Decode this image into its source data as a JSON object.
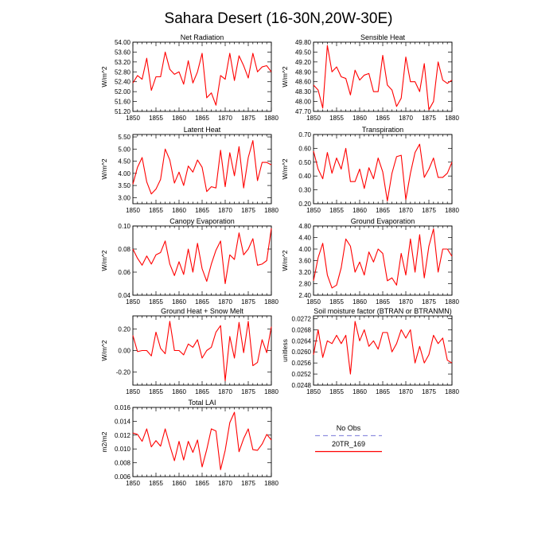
{
  "figure": {
    "title": "Sahara Desert (16-30N,20W-30E)"
  },
  "legend": {
    "entries": [
      {
        "label": "No Obs",
        "color": "#8f8fe0",
        "dashed": true
      },
      {
        "label": "20TR_169",
        "color": "#ff0000",
        "dashed": false
      }
    ]
  },
  "chart_data": [
    {
      "type": "line",
      "title": "Net Radiation",
      "xlabel": "",
      "ylabel": "W/m^2",
      "x": [
        1850,
        1851,
        1852,
        1853,
        1854,
        1855,
        1856,
        1857,
        1858,
        1859,
        1860,
        1861,
        1862,
        1863,
        1864,
        1865,
        1866,
        1867,
        1868,
        1869,
        1870,
        1871,
        1872,
        1873,
        1874,
        1875,
        1876,
        1877,
        1878,
        1879,
        1880
      ],
      "series": [
        {
          "values": [
            52.35,
            52.65,
            52.5,
            53.35,
            52.05,
            52.6,
            52.6,
            53.6,
            52.9,
            52.7,
            52.8,
            52.3,
            53.25,
            52.35,
            52.8,
            53.55,
            51.75,
            51.95,
            51.45,
            52.65,
            52.5,
            53.55,
            52.45,
            53.45,
            53.05,
            52.55,
            53.55,
            52.8,
            53.0,
            53.05,
            52.8
          ],
          "color": "#ff0000"
        }
      ],
      "xlim": [
        1850,
        1880
      ],
      "ylim": [
        51.2,
        54.0
      ],
      "xticks": [
        1850,
        1855,
        1860,
        1865,
        1870,
        1875,
        1880
      ],
      "yticks": [
        51.2,
        51.6,
        52.0,
        52.4,
        52.8,
        53.2,
        53.6,
        54.0
      ],
      "ytick_labels": [
        "51.20",
        "51.60",
        "52.00",
        "52.40",
        "52.80",
        "53.20",
        "53.60",
        "54.00"
      ],
      "legend": "none",
      "grid": false
    },
    {
      "type": "line",
      "title": "Sensible Heat",
      "xlabel": "",
      "ylabel": "W/m^2",
      "x": [
        1850,
        1851,
        1852,
        1853,
        1854,
        1855,
        1856,
        1857,
        1858,
        1859,
        1860,
        1861,
        1862,
        1863,
        1864,
        1865,
        1866,
        1867,
        1868,
        1869,
        1870,
        1871,
        1872,
        1873,
        1874,
        1875,
        1876,
        1877,
        1878,
        1879,
        1880
      ],
      "series": [
        {
          "values": [
            48.5,
            48.35,
            47.8,
            49.7,
            48.9,
            49.05,
            48.75,
            48.7,
            48.2,
            48.95,
            48.65,
            48.8,
            48.85,
            48.3,
            48.3,
            49.4,
            48.5,
            48.35,
            47.85,
            48.1,
            49.35,
            48.6,
            48.6,
            48.3,
            49.15,
            47.75,
            48.0,
            49.2,
            48.65,
            48.55,
            48.65
          ],
          "color": "#ff0000"
        }
      ],
      "xlim": [
        1850,
        1880
      ],
      "ylim": [
        47.7,
        49.8
      ],
      "xticks": [
        1850,
        1855,
        1860,
        1865,
        1870,
        1875,
        1880
      ],
      "yticks": [
        47.7,
        48.0,
        48.3,
        48.6,
        48.9,
        49.2,
        49.5,
        49.8
      ],
      "ytick_labels": [
        "47.70",
        "48.00",
        "48.30",
        "48.60",
        "48.90",
        "49.20",
        "49.50",
        "49.80"
      ],
      "legend": "none",
      "grid": false
    },
    {
      "type": "line",
      "title": "Latent Heat",
      "xlabel": "",
      "ylabel": "W/m^2",
      "x": [
        1850,
        1851,
        1852,
        1853,
        1854,
        1855,
        1856,
        1857,
        1858,
        1859,
        1860,
        1861,
        1862,
        1863,
        1864,
        1865,
        1866,
        1867,
        1868,
        1869,
        1870,
        1871,
        1872,
        1873,
        1874,
        1875,
        1876,
        1877,
        1878,
        1879,
        1880
      ],
      "series": [
        {
          "values": [
            3.55,
            4.25,
            4.65,
            3.65,
            3.15,
            3.35,
            3.75,
            5.0,
            4.55,
            3.6,
            4.05,
            3.5,
            4.3,
            4.05,
            4.55,
            4.25,
            3.25,
            3.45,
            3.4,
            4.95,
            3.45,
            4.85,
            3.9,
            5.1,
            3.4,
            4.65,
            5.35,
            3.7,
            4.45,
            4.45,
            4.35
          ],
          "color": "#ff0000"
        }
      ],
      "xlim": [
        1850,
        1880
      ],
      "ylim": [
        2.75,
        5.6
      ],
      "xticks": [
        1850,
        1855,
        1860,
        1865,
        1870,
        1875,
        1880
      ],
      "yticks": [
        3.0,
        3.5,
        4.0,
        4.5,
        5.0,
        5.5
      ],
      "ytick_labels": [
        "3.00",
        "3.50",
        "4.00",
        "4.50",
        "5.00",
        "5.50"
      ],
      "legend": "none",
      "grid": false
    },
    {
      "type": "line",
      "title": "Transpiration",
      "xlabel": "",
      "ylabel": "W/m^2",
      "x": [
        1850,
        1851,
        1852,
        1853,
        1854,
        1855,
        1856,
        1857,
        1858,
        1859,
        1860,
        1861,
        1862,
        1863,
        1864,
        1865,
        1866,
        1867,
        1868,
        1869,
        1870,
        1871,
        1872,
        1873,
        1874,
        1875,
        1876,
        1877,
        1878,
        1879,
        1880
      ],
      "series": [
        {
          "values": [
            0.58,
            0.45,
            0.38,
            0.57,
            0.42,
            0.53,
            0.45,
            0.6,
            0.36,
            0.36,
            0.45,
            0.31,
            0.46,
            0.38,
            0.53,
            0.43,
            0.22,
            0.42,
            0.54,
            0.55,
            0.23,
            0.42,
            0.57,
            0.63,
            0.39,
            0.45,
            0.53,
            0.39,
            0.39,
            0.42,
            0.5
          ],
          "color": "#ff0000"
        }
      ],
      "xlim": [
        1850,
        1880
      ],
      "ylim": [
        0.2,
        0.7
      ],
      "xticks": [
        1850,
        1855,
        1860,
        1865,
        1870,
        1875,
        1880
      ],
      "yticks": [
        0.2,
        0.3,
        0.4,
        0.5,
        0.6,
        0.7
      ],
      "ytick_labels": [
        "0.20",
        "0.30",
        "0.40",
        "0.50",
        "0.60",
        "0.70"
      ],
      "legend": "none",
      "grid": false
    },
    {
      "type": "line",
      "title": "Canopy Evaporation",
      "xlabel": "",
      "ylabel": "W/m^2",
      "x": [
        1850,
        1851,
        1852,
        1853,
        1854,
        1855,
        1856,
        1857,
        1858,
        1859,
        1860,
        1861,
        1862,
        1863,
        1864,
        1865,
        1866,
        1867,
        1868,
        1869,
        1870,
        1871,
        1872,
        1873,
        1874,
        1875,
        1876,
        1877,
        1878,
        1879,
        1880
      ],
      "series": [
        {
          "values": [
            0.08,
            0.072,
            0.066,
            0.074,
            0.067,
            0.075,
            0.077,
            0.087,
            0.067,
            0.057,
            0.069,
            0.058,
            0.08,
            0.06,
            0.085,
            0.063,
            0.052,
            0.067,
            0.079,
            0.087,
            0.05,
            0.075,
            0.071,
            0.094,
            0.075,
            0.08,
            0.089,
            0.066,
            0.067,
            0.07,
            0.098
          ],
          "color": "#ff0000"
        }
      ],
      "xlim": [
        1850,
        1880
      ],
      "ylim": [
        0.04,
        0.1
      ],
      "xticks": [
        1850,
        1855,
        1860,
        1865,
        1870,
        1875,
        1880
      ],
      "yticks": [
        0.04,
        0.06,
        0.08,
        0.1
      ],
      "ytick_labels": [
        "0.04",
        "0.06",
        "0.08",
        "0.10"
      ],
      "legend": "none",
      "grid": false
    },
    {
      "type": "line",
      "title": "Ground Evaporation",
      "xlabel": "",
      "ylabel": "W/m^2",
      "x": [
        1850,
        1851,
        1852,
        1853,
        1854,
        1855,
        1856,
        1857,
        1858,
        1859,
        1860,
        1861,
        1862,
        1863,
        1864,
        1865,
        1866,
        1867,
        1868,
        1869,
        1870,
        1871,
        1872,
        1873,
        1874,
        1875,
        1876,
        1877,
        1878,
        1879,
        1880
      ],
      "series": [
        {
          "values": [
            2.9,
            3.7,
            4.2,
            3.1,
            2.65,
            2.75,
            3.35,
            4.35,
            4.1,
            3.2,
            3.55,
            3.1,
            3.9,
            3.55,
            4.0,
            3.85,
            2.9,
            3.0,
            2.75,
            3.85,
            3.1,
            4.35,
            3.2,
            4.5,
            3.0,
            4.1,
            4.7,
            3.2,
            4.0,
            4.0,
            3.75
          ],
          "color": "#ff0000"
        }
      ],
      "xlim": [
        1850,
        1880
      ],
      "ylim": [
        2.4,
        4.8
      ],
      "xticks": [
        1850,
        1855,
        1860,
        1865,
        1870,
        1875,
        1880
      ],
      "yticks": [
        2.4,
        2.8,
        3.2,
        3.6,
        4.0,
        4.4,
        4.8
      ],
      "ytick_labels": [
        "2.40",
        "2.80",
        "3.20",
        "3.60",
        "4.00",
        "4.40",
        "4.80"
      ],
      "legend": "none",
      "grid": false
    },
    {
      "type": "line",
      "title": "Ground Heat + Snow Melt",
      "xlabel": "",
      "ylabel": "W/m^2",
      "x": [
        1850,
        1851,
        1852,
        1853,
        1854,
        1855,
        1856,
        1857,
        1858,
        1859,
        1860,
        1861,
        1862,
        1863,
        1864,
        1865,
        1866,
        1867,
        1868,
        1869,
        1870,
        1871,
        1872,
        1873,
        1874,
        1875,
        1876,
        1877,
        1878,
        1879,
        1880
      ],
      "series": [
        {
          "values": [
            0.14,
            -0.01,
            0.0,
            0.0,
            -0.05,
            0.17,
            0.02,
            -0.03,
            0.27,
            0.0,
            0.0,
            -0.04,
            0.06,
            0.03,
            0.1,
            -0.07,
            0.0,
            0.03,
            0.17,
            0.23,
            -0.28,
            0.13,
            -0.07,
            0.26,
            -0.02,
            0.27,
            -0.14,
            -0.11,
            0.1,
            -0.02,
            0.22
          ],
          "color": "#ff0000"
        }
      ],
      "xlim": [
        1850,
        1880
      ],
      "ylim": [
        -0.32,
        0.32
      ],
      "xticks": [
        1850,
        1855,
        1860,
        1865,
        1870,
        1875,
        1880
      ],
      "yticks": [
        -0.2,
        0.0,
        0.2
      ],
      "ytick_labels": [
        "-0.20",
        "0.00",
        "0.20"
      ],
      "legend": "none",
      "grid": false
    },
    {
      "type": "line",
      "title": "Soil moisture factor (BTRAN or BTRANMN)",
      "xlabel": "",
      "ylabel": "unitless",
      "x": [
        1850,
        1851,
        1852,
        1853,
        1854,
        1855,
        1856,
        1857,
        1858,
        1859,
        1860,
        1861,
        1862,
        1863,
        1864,
        1865,
        1866,
        1867,
        1868,
        1869,
        1870,
        1871,
        1872,
        1873,
        1874,
        1875,
        1876,
        1877,
        1878,
        1879,
        1880
      ],
      "series": [
        {
          "values": [
            0.0259,
            0.0268,
            0.0258,
            0.0264,
            0.0263,
            0.0266,
            0.0263,
            0.0266,
            0.0252,
            0.0271,
            0.0264,
            0.0268,
            0.0262,
            0.0264,
            0.0261,
            0.0267,
            0.0267,
            0.026,
            0.0263,
            0.0268,
            0.0265,
            0.0268,
            0.0256,
            0.0262,
            0.0256,
            0.0259,
            0.0266,
            0.0263,
            0.0265,
            0.0257,
            0.0256
          ],
          "color": "#ff0000"
        }
      ],
      "xlim": [
        1850,
        1880
      ],
      "ylim": [
        0.0248,
        0.0273
      ],
      "xticks": [
        1850,
        1855,
        1860,
        1865,
        1870,
        1875,
        1880
      ],
      "yticks": [
        0.0248,
        0.0252,
        0.0256,
        0.026,
        0.0264,
        0.0268,
        0.0272
      ],
      "ytick_labels": [
        "0.0248",
        "0.0252",
        "0.0256",
        "0.0260",
        "0.0264",
        "0.0268",
        "0.0272"
      ],
      "legend": "none",
      "grid": false
    },
    {
      "type": "line",
      "title": "Total LAI",
      "xlabel": "",
      "ylabel": "m2/m2",
      "x": [
        1850,
        1851,
        1852,
        1853,
        1854,
        1855,
        1856,
        1857,
        1858,
        1859,
        1860,
        1861,
        1862,
        1863,
        1864,
        1865,
        1866,
        1867,
        1868,
        1869,
        1870,
        1871,
        1872,
        1873,
        1874,
        1875,
        1876,
        1877,
        1878,
        1879,
        1880
      ],
      "series": [
        {
          "values": [
            0.0123,
            0.0121,
            0.0111,
            0.0129,
            0.0103,
            0.0112,
            0.0104,
            0.0129,
            0.0105,
            0.0083,
            0.0111,
            0.0084,
            0.0111,
            0.0095,
            0.0113,
            0.0074,
            0.0099,
            0.0129,
            0.0126,
            0.007,
            0.0098,
            0.0138,
            0.0153,
            0.0096,
            0.0115,
            0.0129,
            0.0099,
            0.0098,
            0.0107,
            0.0121,
            0.0113
          ],
          "color": "#ff0000"
        }
      ],
      "xlim": [
        1850,
        1880
      ],
      "ylim": [
        0.006,
        0.016
      ],
      "xticks": [
        1850,
        1855,
        1860,
        1865,
        1870,
        1875,
        1880
      ],
      "yticks": [
        0.006,
        0.008,
        0.01,
        0.012,
        0.014,
        0.016
      ],
      "ytick_labels": [
        "0.006",
        "0.008",
        "0.010",
        "0.012",
        "0.014",
        "0.016"
      ],
      "legend": "none",
      "grid": false
    }
  ]
}
